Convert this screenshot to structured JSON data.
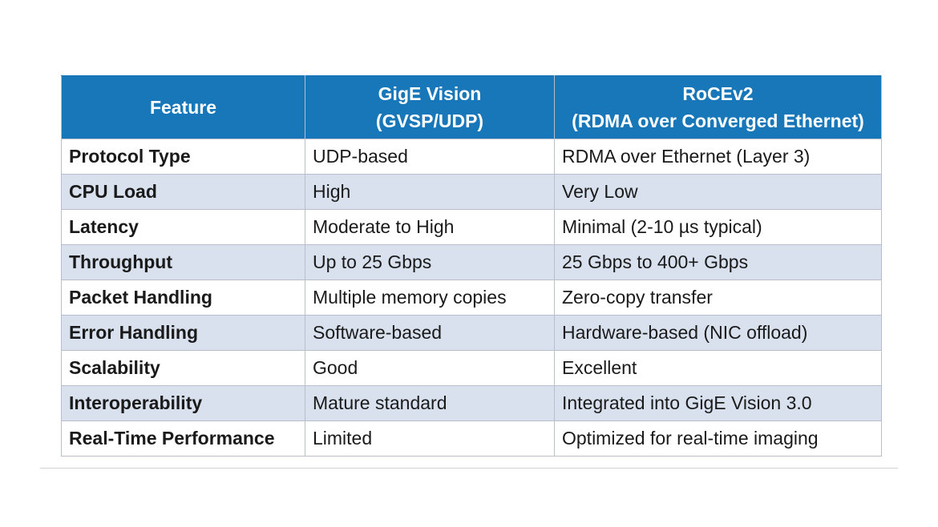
{
  "table": {
    "headers": [
      {
        "line1": "Feature",
        "line2": ""
      },
      {
        "line1": "GigE Vision",
        "line2": "(GVSP/UDP)"
      },
      {
        "line1": "RoCEv2",
        "line2": "(RDMA over Converged Ethernet)"
      }
    ],
    "rows": [
      {
        "feature": "Protocol Type",
        "gige": "UDP-based",
        "rocev2": "RDMA over Ethernet (Layer 3)"
      },
      {
        "feature": "CPU Load",
        "gige": "High",
        "rocev2": "Very Low"
      },
      {
        "feature": "Latency",
        "gige": "Moderate to High",
        "rocev2": "Minimal (2-10 µs typical)"
      },
      {
        "feature": "Throughput",
        "gige": "Up to 25 Gbps",
        "rocev2": "25 Gbps to 400+ Gbps"
      },
      {
        "feature": "Packet Handling",
        "gige": "Multiple memory copies",
        "rocev2": "Zero-copy transfer"
      },
      {
        "feature": "Error Handling",
        "gige": "Software-based",
        "rocev2": "Hardware-based (NIC offload)"
      },
      {
        "feature": "Scalability",
        "gige": "Good",
        "rocev2": "Excellent"
      },
      {
        "feature": "Interoperability",
        "gige": "Mature standard",
        "rocev2": "Integrated into GigE Vision 3.0"
      },
      {
        "feature": "Real-Time Performance",
        "gige": "Limited",
        "rocev2": "Optimized for real-time imaging"
      }
    ]
  },
  "colors": {
    "header_bg": "#1877b8",
    "header_text": "#ffffff",
    "row_alt_bg": "#d8e1ed",
    "row_bg": "#ffffff",
    "border": "#b7bfca"
  }
}
